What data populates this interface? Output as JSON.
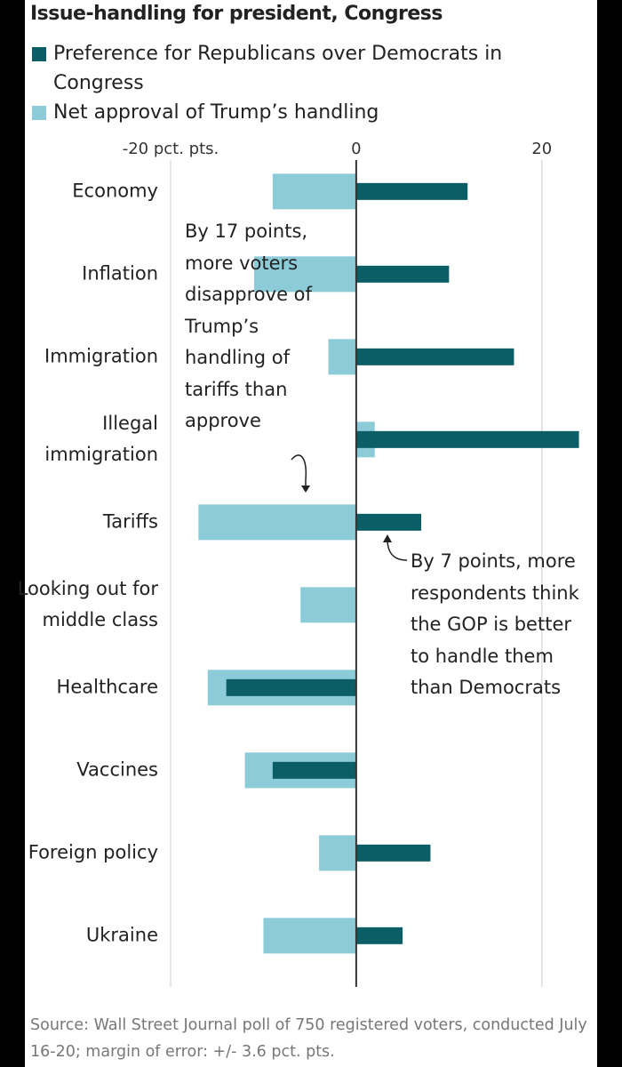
{
  "chart_data": {
    "type": "hbar",
    "title": "Issue-handling for president, Congress",
    "categories": [
      "Economy",
      "Inflation",
      "Immigration",
      "Illegal immigration",
      "Tariffs",
      "Looking out for middle class",
      "Healthcare",
      "Vaccines",
      "Foreign policy",
      "Ukraine"
    ],
    "series": [
      {
        "name": "Net approval of Trump’s handling",
        "color": "#8ccbd8",
        "values": [
          -9,
          -11,
          -3,
          2,
          -17,
          -6,
          -16,
          -12,
          -4,
          -10
        ]
      },
      {
        "name": "Preference for Republicans over Democrats in Congress",
        "color": "#0b5d66",
        "values": [
          12,
          10,
          17,
          24,
          7,
          0,
          -14,
          -9,
          8,
          5
        ]
      }
    ],
    "xlim": [
      -20,
      25
    ],
    "xticks": [
      {
        "value": -20,
        "label": "-20 pct. pts."
      },
      0,
      20
    ],
    "grid": true,
    "annotations": [
      "By 17 points, more voters disapprove of Trump’s handling of tariffs than approve",
      "By 7 points, more respondents think the GOP is better to handle them than Democrats"
    ],
    "source": "Source: Wall Street Journal poll of 750 registered voters, conducted July 16-20; margin of error: +/- 3.6 pct. pts."
  }
}
